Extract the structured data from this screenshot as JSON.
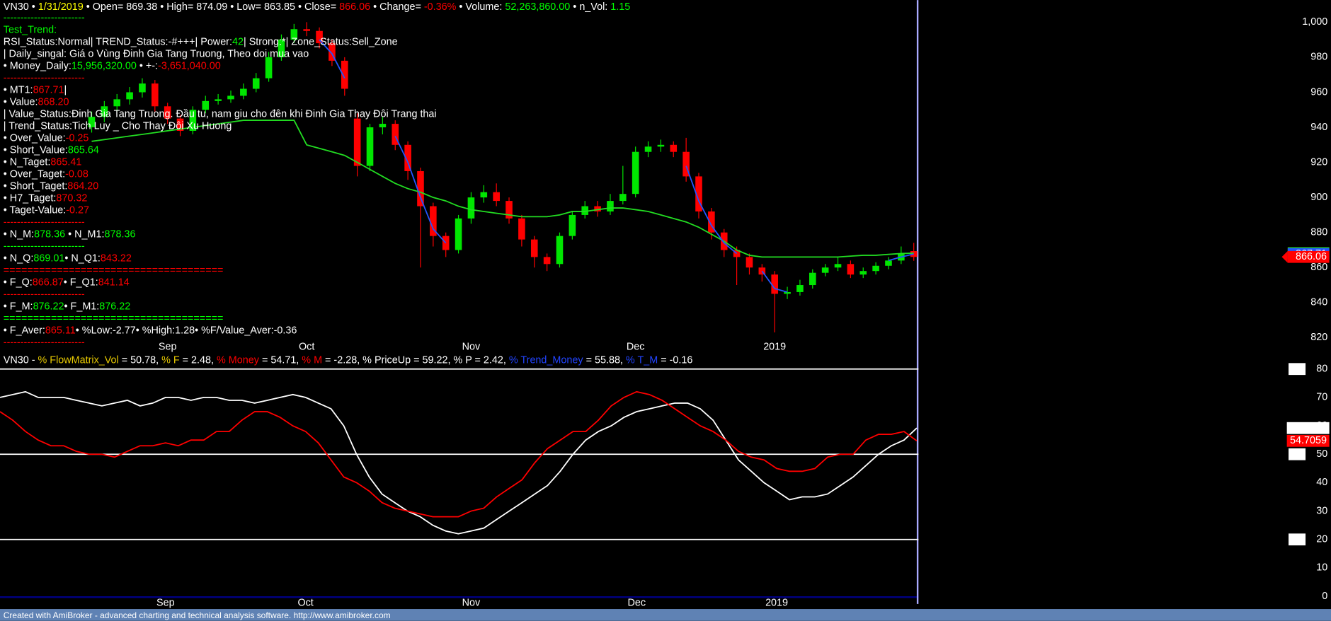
{
  "chart_data": [
    {
      "type": "candlestick",
      "header": [
        {
          "text": "VN30 • "
        },
        {
          "text": "1/31/2019",
          "color": "#ffff00"
        },
        {
          "text": " • Open= 869.38 • High= 874.09 • Low= 863.85 • Close= "
        },
        {
          "text": "866.06",
          "color": "#ff0000"
        },
        {
          "text": " • Change= "
        },
        {
          "text": "-0.36%",
          "color": "#ff0000"
        },
        {
          "text": " • Volume: "
        },
        {
          "text": "52,263,860.00",
          "color": "#00ff00"
        },
        {
          "text": " • n_Vol: "
        },
        {
          "text": "1.15",
          "color": "#00ff00"
        }
      ],
      "text_lines": [
        [
          {
            "text": "------------------------",
            "color": "#00ff00"
          }
        ],
        [
          {
            "text": "Test_Trend:",
            "color": "#00ff00"
          }
        ],
        [
          {
            "text": "RSI_Status:Normal| TREND_Status:-#+++| Power:"
          },
          {
            "text": "42",
            "color": "#00ff00"
          },
          {
            "text": "| Strong:*| Zone_Status:Sell_Zone"
          }
        ],
        [
          {
            "text": "| Daily_singal: Giá o Vùng Đinh Gia Tang Truong, Theo doi mua vao"
          }
        ],
        [
          {
            "text": "• Money_Daily:"
          },
          {
            "text": "15,956,320.00",
            "color": "#00ff00"
          },
          {
            "text": " • +-:"
          },
          {
            "text": "-3,651,040.00",
            "color": "#ff0000"
          }
        ],
        [
          {
            "text": "------------------------",
            "color": "#ff0000"
          }
        ],
        [
          {
            "text": "• MT1:"
          },
          {
            "text": "867.71",
            "color": "#ff0000"
          },
          {
            "text": "|"
          }
        ],
        [
          {
            "text": "• Value:"
          },
          {
            "text": "868.20",
            "color": "#ff0000"
          }
        ],
        [
          {
            "text": "| Value_Status:Đinh Gia Tang Truong. Đầu tu, nam giu cho đên khi Đinh Gia Thay Đôi Trang thai"
          }
        ],
        [
          {
            "text": "| Trend_Status:Tich Luy _ Cho Thay Đôi Xu Huong"
          }
        ],
        [
          {
            "text": "• Over_Value:"
          },
          {
            "text": "-0.25",
            "color": "#ff0000"
          }
        ],
        [
          {
            "text": "• Short_Value:"
          },
          {
            "text": "865.64",
            "color": "#00ff00"
          }
        ],
        [
          {
            "text": "• N_Taget:"
          },
          {
            "text": "865.41",
            "color": "#ff0000"
          }
        ],
        [
          {
            "text": "• Over_Taget:"
          },
          {
            "text": "-0.08",
            "color": "#ff0000"
          }
        ],
        [
          {
            "text": "• Short_Taget:"
          },
          {
            "text": "864.20",
            "color": "#ff0000"
          }
        ],
        [
          {
            "text": "• H7_Taget:"
          },
          {
            "text": "870.32",
            "color": "#ff0000"
          }
        ],
        [
          {
            "text": "• Taget-Value:"
          },
          {
            "text": "-0.27",
            "color": "#ff0000"
          }
        ],
        [
          {
            "text": "------------------------",
            "color": "#ff0000"
          }
        ],
        [
          {
            "text": "• N_M:"
          },
          {
            "text": "878.36",
            "color": "#00ff00"
          },
          {
            "text": " • N_M1:"
          },
          {
            "text": "878.36",
            "color": "#00ff00"
          }
        ],
        [
          {
            "text": "------------------------",
            "color": "#00ff00"
          }
        ],
        [
          {
            "text": "• N_Q:"
          },
          {
            "text": "869.01",
            "color": "#00ff00"
          },
          {
            "text": "• N_Q1:"
          },
          {
            "text": "843.22",
            "color": "#ff0000"
          }
        ],
        [
          {
            "text": "=====================================",
            "color": "#ff0000"
          }
        ],
        [
          {
            "text": "• F_Q:"
          },
          {
            "text": "866.87",
            "color": "#ff0000"
          },
          {
            "text": "• F_Q1:"
          },
          {
            "text": "841.14",
            "color": "#ff0000"
          }
        ],
        [
          {
            "text": "------------------------",
            "color": "#ff0000"
          }
        ],
        [
          {
            "text": "• F_M:"
          },
          {
            "text": "876.22",
            "color": "#00ff00"
          },
          {
            "text": "• F_M1:"
          },
          {
            "text": "876.22",
            "color": "#00ff00"
          }
        ],
        [
          {
            "text": "=====================================",
            "color": "#00ff00"
          }
        ],
        [
          {
            "text": "• F_Aver:"
          },
          {
            "text": "865.11",
            "color": "#ff0000"
          },
          {
            "text": "• %Low:-2.77• %High:1.28• %F/Value_Aver:-0.36"
          }
        ],
        [
          {
            "text": "------------------------",
            "color": "#ff0000"
          }
        ]
      ],
      "categories": [
        null,
        null,
        null,
        null,
        null,
        null,
        "Sep",
        null,
        null,
        null,
        null,
        null,
        null,
        null,
        null,
        null,
        null,
        "Oct",
        null,
        null,
        null,
        null,
        null,
        null,
        null,
        null,
        null,
        null,
        null,
        null,
        "Nov",
        null,
        null,
        null,
        null,
        null,
        null,
        null,
        null,
        null,
        null,
        null,
        null,
        "Dec",
        null,
        null,
        null,
        null,
        null,
        null,
        null,
        null,
        null,
        null,
        "2019",
        null,
        null,
        null,
        null,
        null,
        null,
        null,
        null,
        null,
        null,
        null
      ],
      "open": [
        940,
        946,
        952,
        956,
        960,
        965,
        952,
        945,
        938,
        950,
        955,
        956,
        958,
        962,
        968,
        980,
        990,
        996,
        995,
        988,
        978,
        945,
        918,
        940,
        942,
        930,
        915,
        895,
        878,
        870,
        888,
        900,
        903,
        898,
        888,
        876,
        866,
        862,
        878,
        890,
        895,
        892,
        898,
        902,
        926,
        929,
        930,
        926,
        912,
        892,
        880,
        870,
        866,
        860,
        856,
        845,
        846,
        850,
        857,
        860,
        862,
        856,
        858,
        861,
        864,
        869.38
      ],
      "high": [
        949,
        955,
        959,
        963,
        968,
        967,
        954,
        947,
        952,
        958,
        959,
        961,
        965,
        971,
        983,
        993,
        999,
        1000,
        997,
        990,
        980,
        948,
        942,
        946,
        944,
        932,
        917,
        897,
        880,
        890,
        903,
        907,
        908,
        900,
        890,
        878,
        868,
        880,
        892,
        898,
        898,
        902,
        918,
        929,
        932,
        933,
        932,
        934,
        914,
        894,
        882,
        872,
        868,
        862,
        858,
        849,
        853,
        859,
        862,
        866,
        864,
        860,
        863,
        866,
        872,
        874.09
      ],
      "low": [
        937,
        943,
        949,
        953,
        957,
        949,
        942,
        935,
        936,
        948,
        953,
        954,
        956,
        960,
        966,
        978,
        988,
        992,
        985,
        975,
        958,
        912,
        915,
        936,
        927,
        910,
        860,
        872,
        866,
        868,
        885,
        897,
        895,
        885,
        872,
        860,
        858,
        860,
        876,
        888,
        889,
        890,
        896,
        900,
        923,
        926,
        923,
        909,
        888,
        876,
        866,
        850,
        856,
        852,
        823,
        842,
        844,
        848,
        855,
        858,
        854,
        854,
        856,
        859,
        862,
        863.85
      ],
      "close": [
        946,
        952,
        956,
        960,
        965,
        952,
        945,
        938,
        950,
        955,
        956,
        958,
        962,
        968,
        980,
        990,
        996,
        995,
        988,
        978,
        962,
        918,
        940,
        942,
        930,
        915,
        895,
        878,
        870,
        888,
        900,
        903,
        898,
        888,
        876,
        866,
        862,
        878,
        890,
        895,
        892,
        898,
        902,
        926,
        929,
        930,
        926,
        912,
        892,
        880,
        870,
        866,
        860,
        856,
        845,
        846,
        850,
        857,
        860,
        862,
        856,
        858,
        861,
        864,
        868,
        866.06
      ],
      "up_color": "#00e600",
      "down_color": "#ff0000",
      "series": [
        {
          "color": "#22dd22",
          "values": [
            932,
            933,
            934,
            935,
            936,
            937,
            938,
            939,
            940,
            941,
            942,
            943,
            944,
            944,
            944,
            944,
            944,
            930,
            928,
            926,
            924,
            920,
            916,
            912,
            908,
            905,
            903,
            900,
            898,
            895,
            893,
            892,
            891,
            890,
            889,
            889,
            889,
            890,
            892,
            892,
            893,
            894,
            894,
            893,
            892,
            890,
            888,
            886,
            883,
            879,
            875,
            870,
            867,
            866,
            866,
            866,
            866,
            866,
            866,
            866,
            866.5,
            867,
            867,
            867.5,
            868,
            868.201
          ]
        },
        {
          "color": "#2255ff",
          "values": [
            null,
            null,
            null,
            null,
            null,
            null,
            null,
            null,
            null,
            null,
            null,
            null,
            null,
            null,
            null,
            null,
            null,
            null,
            990,
            982,
            968,
            null,
            null,
            null,
            935,
            920,
            900,
            882,
            874,
            null,
            null,
            null,
            null,
            null,
            null,
            null,
            null,
            null,
            null,
            null,
            null,
            null,
            null,
            null,
            null,
            null,
            null,
            918,
            898,
            884,
            874,
            868,
            null,
            858,
            848,
            846,
            null,
            null,
            null,
            null,
            null,
            null,
            null,
            864,
            866,
            867.71
          ]
        }
      ],
      "ylim": [
        820,
        1000
      ],
      "yticks": [
        820,
        840,
        860,
        880,
        900,
        920,
        940,
        960,
        980,
        {
          "value": 1000,
          "label": "1,000"
        }
      ]
    },
    {
      "type": "line",
      "header": [
        {
          "text": "VN30 - "
        },
        {
          "text": "% FlowMatrix_Vol",
          "color": "#e6c800"
        },
        {
          "text": " = 50.78, "
        },
        {
          "text": "% F",
          "color": "#e6c800"
        },
        {
          "text": " = 2.48, "
        },
        {
          "text": "% Money",
          "color": "#ff0000"
        },
        {
          "text": " = 54.71, "
        },
        {
          "text": "% M",
          "color": "#ff0000"
        },
        {
          "text": " = -2.28, % PriceUp = 59.22, % P = 2.42, "
        },
        {
          "text": "% Trend_Money",
          "color": "#2244ff"
        },
        {
          "text": " = 55.88, "
        },
        {
          "text": "% T_M",
          "color": "#2244ff"
        },
        {
          "text": " = -0.16"
        }
      ],
      "categories": [
        null,
        null,
        null,
        null,
        null,
        null,
        null,
        null,
        null,
        null,
        null,
        null,
        null,
        "Sep",
        null,
        null,
        null,
        null,
        null,
        null,
        null,
        null,
        null,
        null,
        "Oct",
        null,
        null,
        null,
        null,
        null,
        null,
        null,
        null,
        null,
        null,
        null,
        null,
        "Nov",
        null,
        null,
        null,
        null,
        null,
        null,
        null,
        null,
        null,
        null,
        null,
        null,
        "Dec",
        null,
        null,
        null,
        null,
        null,
        null,
        null,
        null,
        null,
        null,
        "2019",
        null,
        null,
        null,
        null,
        null,
        null,
        null,
        null,
        null,
        null,
        null
      ],
      "series": [
        {
          "color": "#ffffff",
          "values": [
            70,
            71,
            72,
            70,
            70,
            70,
            69,
            68,
            67,
            68,
            69,
            67,
            68,
            70,
            70,
            69,
            70,
            70,
            69,
            69,
            68,
            69,
            70,
            71,
            70,
            68,
            66,
            60,
            50,
            42,
            36,
            33,
            30,
            28,
            25,
            23,
            22,
            23,
            24,
            27,
            30,
            33,
            36,
            39,
            44,
            50,
            55,
            58,
            60,
            63,
            65,
            66,
            67,
            68,
            68,
            66,
            62,
            55,
            48,
            44,
            40,
            37,
            34,
            35,
            35,
            36,
            39,
            42,
            46,
            50,
            53,
            55,
            59.2157
          ]
        },
        {
          "color": "#ff0000",
          "values": [
            65,
            62,
            58,
            55,
            53,
            53,
            51,
            50,
            50,
            49,
            51,
            53,
            53,
            54,
            53,
            55,
            55,
            58,
            58,
            62,
            65,
            65,
            63,
            60,
            58,
            54,
            48,
            42,
            40,
            37,
            33,
            31,
            30,
            29,
            28,
            28,
            28,
            30,
            31,
            35,
            38,
            41,
            47,
            52,
            55,
            58,
            58,
            62,
            67,
            70,
            72,
            71,
            69,
            66,
            63,
            60,
            58,
            55,
            51,
            49,
            48,
            45,
            44,
            44,
            45,
            49,
            50,
            50,
            55,
            57,
            57,
            58,
            54.7059
          ]
        }
      ],
      "levels": [
        80,
        50,
        20
      ],
      "ylim": [
        0,
        80
      ],
      "yticks": [
        0,
        10,
        20,
        30,
        40,
        50,
        60,
        70,
        80
      ]
    }
  ],
  "footer": "Created with AmiBroker - advanced charting and technical analysis software. http://www.amibroker.com"
}
